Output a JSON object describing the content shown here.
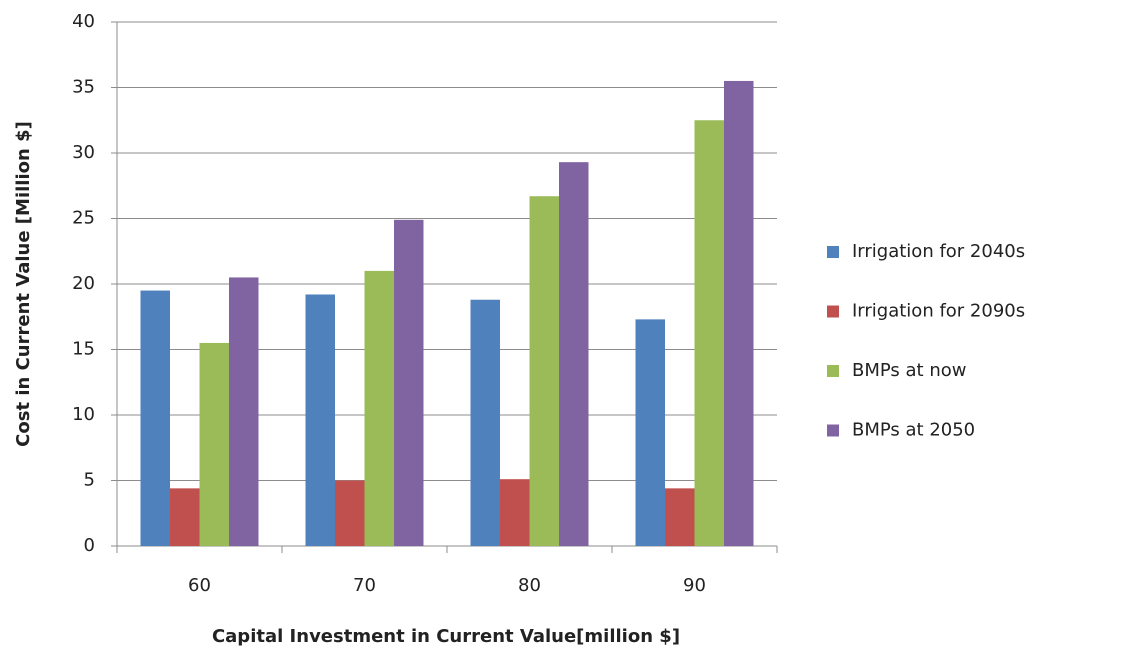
{
  "chart_data": {
    "type": "bar",
    "categories": [
      "60",
      "70",
      "80",
      "90"
    ],
    "series": [
      {
        "name": "Irrigation for 2040s",
        "color": "#4f81bd",
        "values": [
          19.5,
          19.2,
          18.8,
          17.3
        ]
      },
      {
        "name": "Irrigation for 2090s",
        "color": "#c0504d",
        "values": [
          4.4,
          5.0,
          5.1,
          4.4
        ]
      },
      {
        "name": "BMPs at now",
        "color": "#9bbb59",
        "values": [
          15.5,
          21.0,
          26.7,
          32.5
        ]
      },
      {
        "name": "BMPs at 2050",
        "color": "#8064a2",
        "values": [
          20.5,
          24.9,
          29.3,
          35.5
        ]
      }
    ],
    "x_label": "Capital  Investment in Current Value[million  $]",
    "y_label": "Cost in  Current Value [Million  $]",
    "ylim": [
      0,
      40
    ],
    "yticks": [
      0,
      5,
      10,
      15,
      20,
      25,
      30,
      35,
      40
    ],
    "grid": true,
    "legend": "right"
  }
}
